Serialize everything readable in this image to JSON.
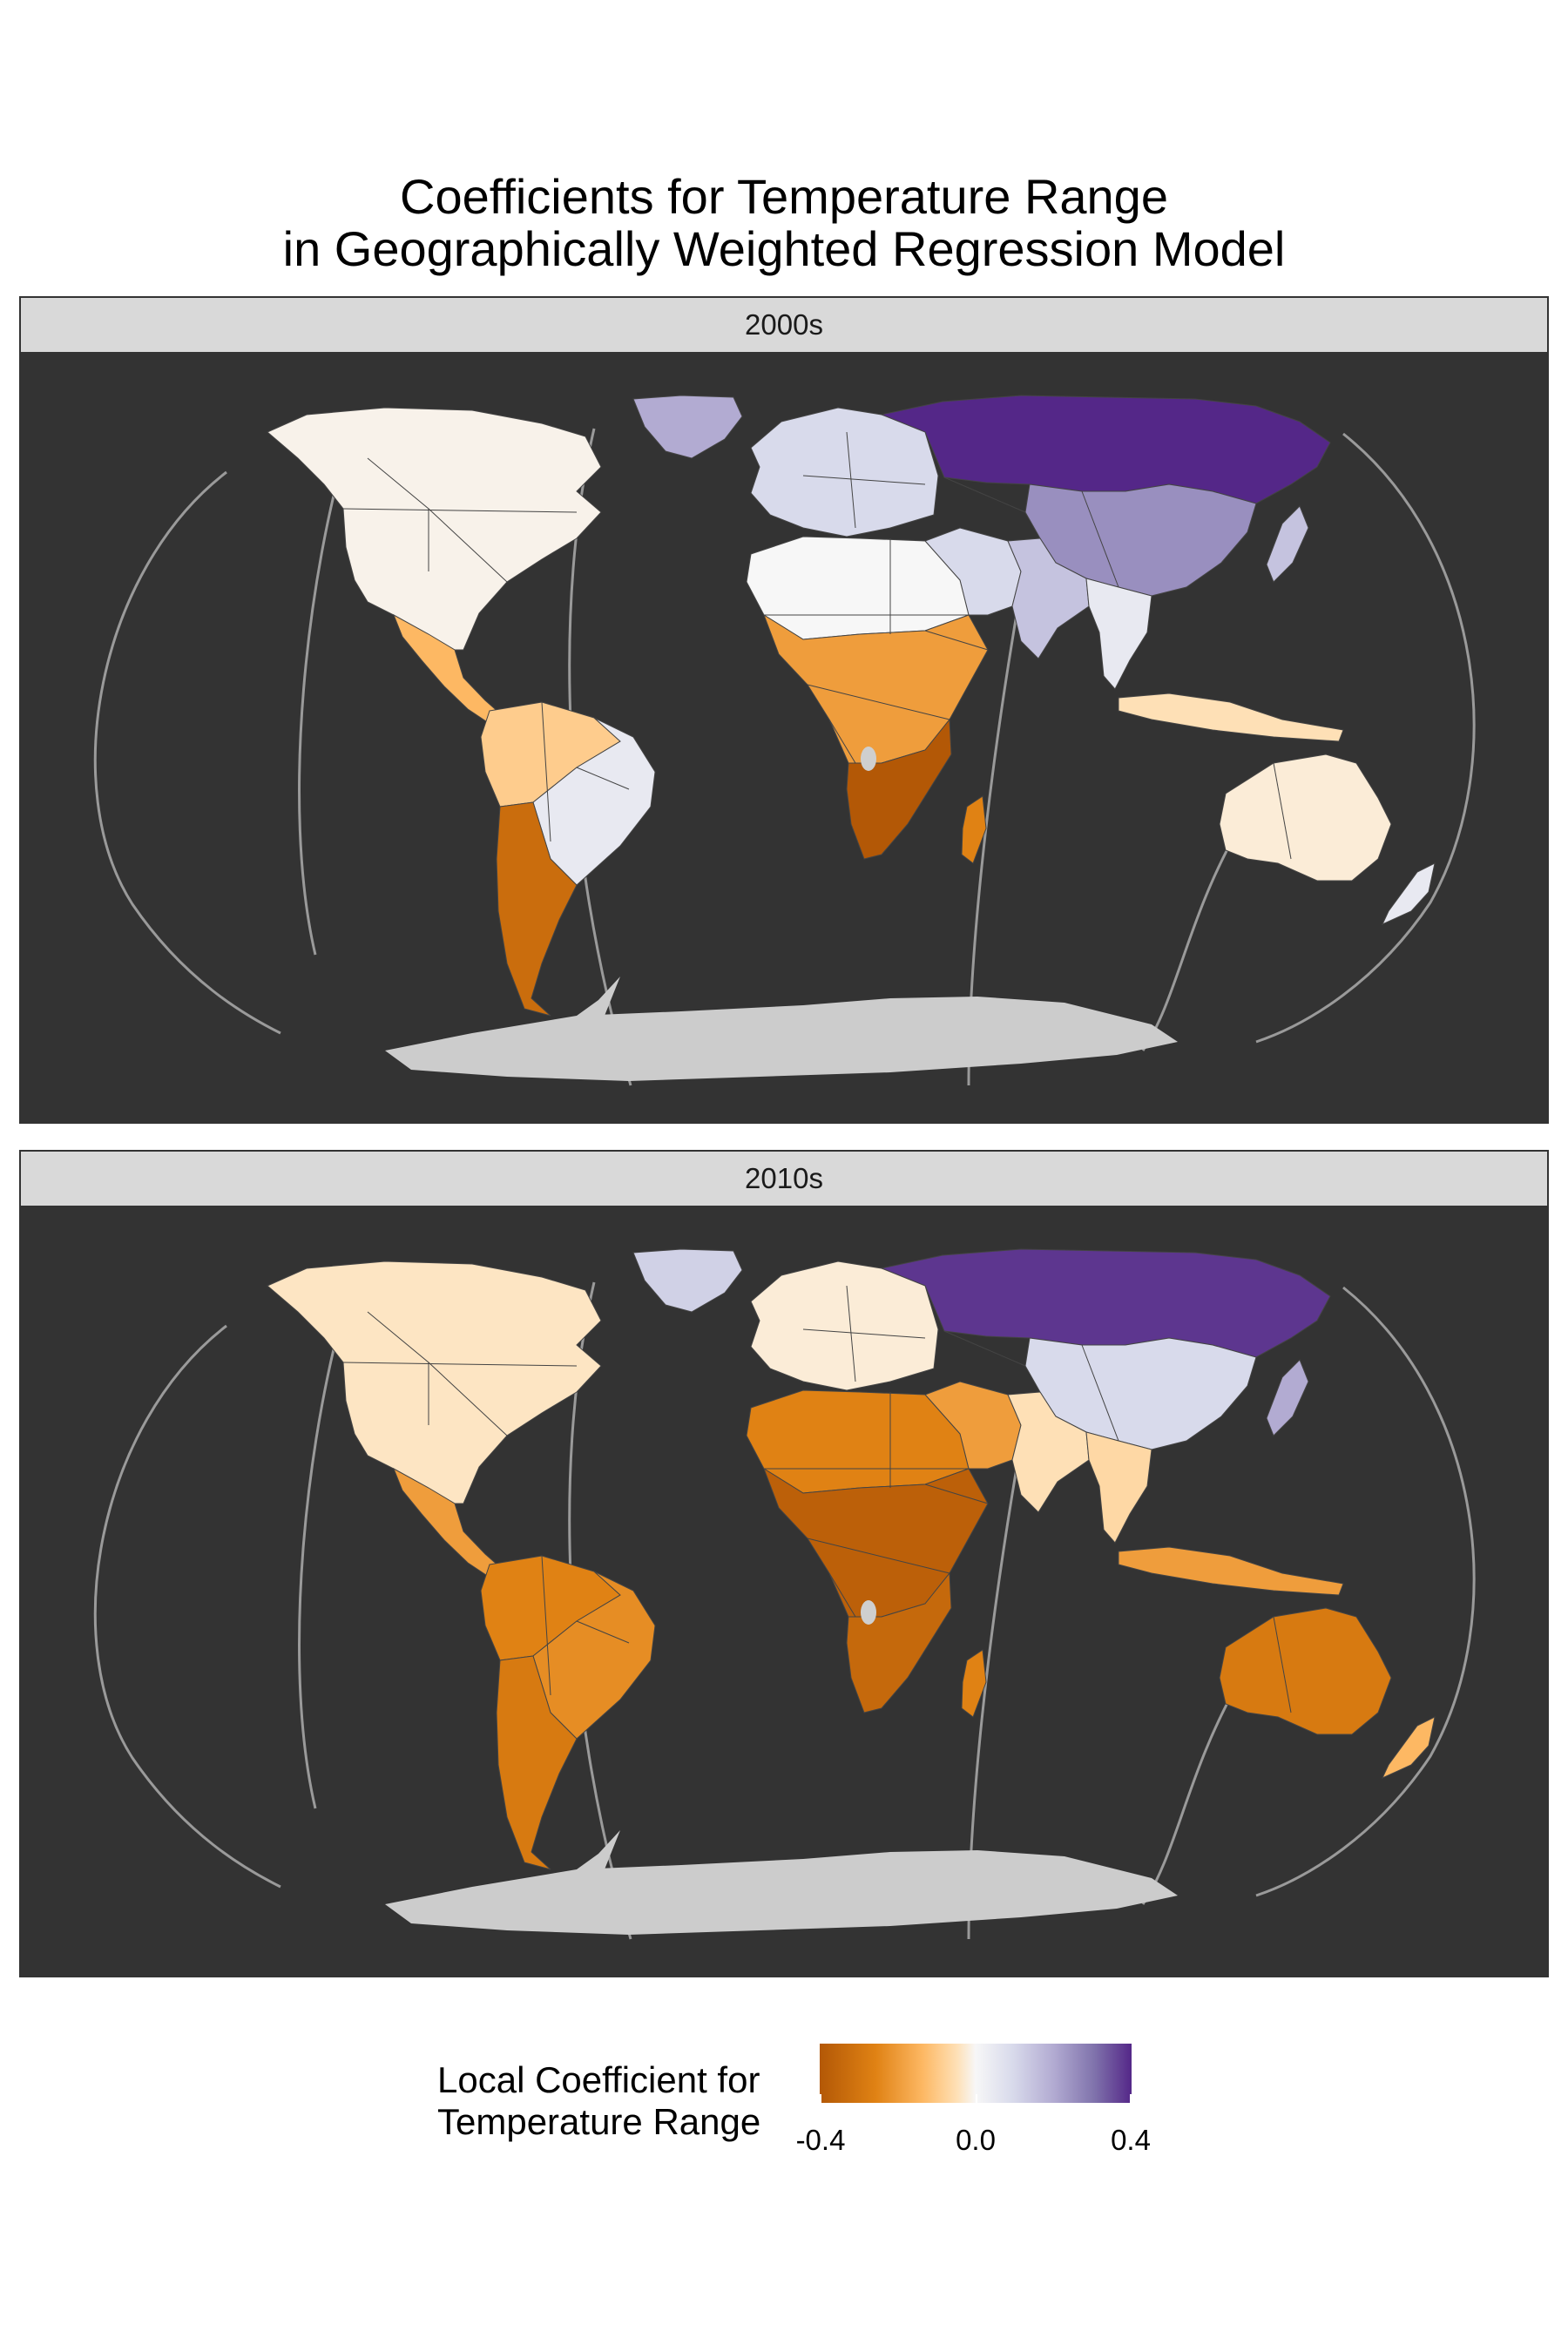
{
  "title": {
    "line1": "Coefficients for Temperature Range",
    "line2": "in Geographically Weighted Regression Model"
  },
  "panels": [
    {
      "label": "2000s",
      "regions": {
        "north_america": -0.02,
        "greenland": 0.2,
        "central_america": -0.2,
        "south_america_north": -0.15,
        "south_america_east": 0.05,
        "south_america_south": -0.35,
        "europe": 0.1,
        "north_africa": 0.0,
        "central_africa": -0.25,
        "southern_africa": -0.4,
        "madagascar": -0.3,
        "middle_east": 0.1,
        "russia_siberia": 0.4,
        "china": 0.25,
        "india": 0.15,
        "southeast_asia": 0.05,
        "japan": 0.15,
        "indonesia": -0.1,
        "australia": -0.05,
        "new_zealand": 0.05
      }
    },
    {
      "label": "2010s",
      "regions": {
        "north_america": -0.08,
        "greenland": 0.12,
        "central_america": -0.25,
        "south_america_north": -0.3,
        "south_america_east": -0.28,
        "south_america_south": -0.32,
        "europe": -0.05,
        "north_africa": -0.3,
        "central_africa": -0.38,
        "southern_africa": -0.36,
        "madagascar": -0.3,
        "middle_east": -0.25,
        "russia_siberia": 0.38,
        "china": 0.1,
        "india": -0.1,
        "southeast_asia": -0.12,
        "japan": 0.2,
        "indonesia": -0.25,
        "australia": -0.32,
        "new_zealand": -0.2
      }
    }
  ],
  "legend": {
    "title_line1": "Local Coefficient for",
    "title_line2": "Temperature Range",
    "ticks": [
      "-0.4",
      "0.0",
      "0.4"
    ],
    "scale_min": -0.4,
    "scale_max": 0.4,
    "colors": [
      "#b35806",
      "#e08214",
      "#fdb863",
      "#fee0b6",
      "#f7f7f7",
      "#d8daeb",
      "#b2abd2",
      "#8073ac",
      "#542788"
    ]
  },
  "colors": {
    "panel_background": "#333333",
    "strip_background": "#d9d9d9",
    "antarctica": "#cccccc",
    "graticule": "#9a9a9a",
    "border": "#444444",
    "missing": "#cfcfcf"
  }
}
